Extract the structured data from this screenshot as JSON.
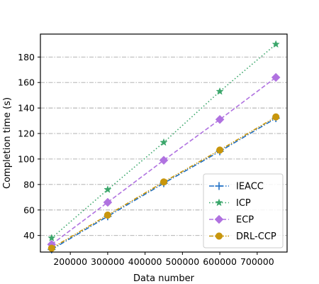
{
  "chart_data": {
    "type": "line",
    "xlabel": "Data number",
    "ylabel": "Completion time (s)",
    "xlim": [
      120000,
      780000
    ],
    "ylim": [
      27,
      198
    ],
    "x_ticks": [
      200000,
      300000,
      400000,
      500000,
      600000,
      700000
    ],
    "x_tick_labels": [
      "200000",
      "300000",
      "400000",
      "500000",
      "600000",
      "700000"
    ],
    "y_ticks": [
      40,
      60,
      80,
      100,
      120,
      140,
      160,
      180
    ],
    "y_tick_labels": [
      "40",
      "60",
      "80",
      "100",
      "120",
      "140",
      "160",
      "180"
    ],
    "grid": "horizontal dash-dot",
    "legend_position": "lower-right",
    "x": [
      150000,
      300000,
      450000,
      600000,
      750000
    ],
    "series": [
      {
        "name": "IEACC",
        "values": [
          29,
          55,
          81,
          106,
          132
        ],
        "color": "#1f6fc5",
        "marker": "plus",
        "line_style": "dash-dot"
      },
      {
        "name": "ICP",
        "values": [
          38,
          76,
          113,
          153,
          190
        ],
        "color": "#3aa66a",
        "marker": "star",
        "line_style": "dotted"
      },
      {
        "name": "ECP",
        "values": [
          33,
          66,
          99,
          131,
          164
        ],
        "color": "#b072e0",
        "marker": "diamond",
        "line_style": "dashed"
      },
      {
        "name": "DRL-CCP",
        "values": [
          30,
          56,
          82,
          107,
          133
        ],
        "color": "#c8960c",
        "marker": "circle",
        "line_style": "dash-dot-dot"
      }
    ]
  }
}
